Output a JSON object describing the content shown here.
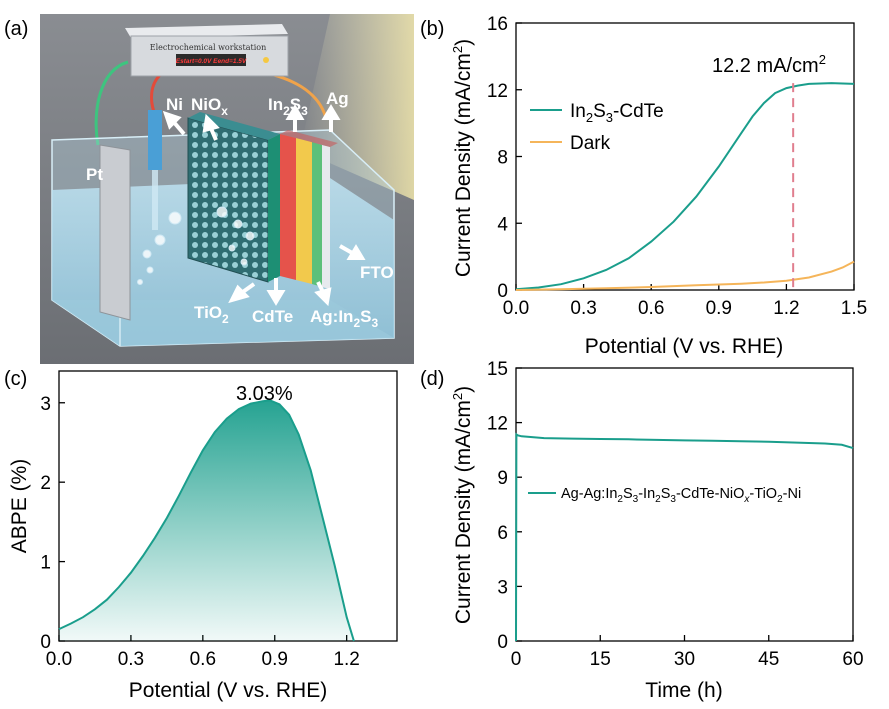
{
  "colors": {
    "teal": "#1a9e8c",
    "orange": "#f5b55a",
    "pink_dash": "#e07e8e",
    "axis": "#000000"
  },
  "schematic": {
    "panel_label": "(a)",
    "device_title": "Electrochemical workstation",
    "device_screen": "Estart=0.0V  Eend=1.5V",
    "labels": {
      "pt": "Pt",
      "ni": "Ni",
      "niox": {
        "base": "NiO",
        "sub": "x"
      },
      "in2s3": {
        "base": "In",
        "sub1": "2",
        "mid": "S",
        "sub2": "3"
      },
      "ag": "Ag",
      "fto": "FTO",
      "tio2": {
        "base": "TiO",
        "sub": "2"
      },
      "cdte": "CdTe",
      "ag_in2s3": {
        "base": "Ag:In",
        "sub1": "2",
        "mid": "S",
        "sub2": "3"
      }
    }
  },
  "chart_data": [
    {
      "id": "b",
      "panel_label": "(b)",
      "type": "line",
      "xlabel": "Potential (V vs. RHE)",
      "ylabel": {
        "base": "Current Density (mA/cm",
        "sup": "2",
        "end": ")"
      },
      "xlim": [
        0,
        1.5
      ],
      "ylim": [
        0,
        16
      ],
      "xticks": [
        "0.0",
        "0.3",
        "0.6",
        "0.9",
        "1.2",
        "1.5"
      ],
      "yticks": [
        "0",
        "4",
        "8",
        "12",
        "16"
      ],
      "legend_position": "center-left",
      "series": [
        {
          "name_base": "In",
          "name_sub1": "2",
          "name_mid": "S",
          "name_sub2": "3",
          "name_end": "-CdTe",
          "color": "#1a9e8c",
          "x": [
            0,
            0.1,
            0.2,
            0.3,
            0.4,
            0.5,
            0.6,
            0.7,
            0.8,
            0.9,
            1.0,
            1.05,
            1.1,
            1.15,
            1.2,
            1.25,
            1.3,
            1.4,
            1.5
          ],
          "y": [
            0.05,
            0.15,
            0.35,
            0.7,
            1.2,
            1.9,
            2.9,
            4.1,
            5.6,
            7.4,
            9.4,
            10.4,
            11.2,
            11.8,
            12.1,
            12.25,
            12.35,
            12.4,
            12.35
          ]
        },
        {
          "name": "Dark",
          "color": "#f5b55a",
          "x": [
            0,
            0.2,
            0.4,
            0.6,
            0.8,
            1.0,
            1.1,
            1.2,
            1.3,
            1.4,
            1.45,
            1.5
          ],
          "y": [
            0.0,
            0.05,
            0.1,
            0.18,
            0.28,
            0.38,
            0.45,
            0.55,
            0.75,
            1.1,
            1.35,
            1.7
          ]
        }
      ],
      "annotation": {
        "text_base": "12.2 mA/cm",
        "text_sup": "2",
        "x": 1.23
      }
    },
    {
      "id": "c",
      "panel_label": "(c)",
      "type": "area",
      "xlabel": "Potential (V vs. RHE)",
      "ylabel": "ABPE (%)",
      "xlim": [
        0,
        1.41
      ],
      "ylim": [
        0,
        3.4
      ],
      "xticks": [
        "0.0",
        "0.3",
        "0.6",
        "0.9",
        "1.2"
      ],
      "yticks": [
        "0",
        "1",
        "2",
        "3"
      ],
      "series": [
        {
          "color": "#1a9e8c",
          "x": [
            0,
            0.05,
            0.1,
            0.15,
            0.2,
            0.25,
            0.3,
            0.35,
            0.4,
            0.45,
            0.5,
            0.55,
            0.6,
            0.65,
            0.7,
            0.75,
            0.8,
            0.85,
            0.88,
            0.92,
            0.96,
            1.0,
            1.05,
            1.1,
            1.15,
            1.2,
            1.23
          ],
          "y": [
            0.15,
            0.22,
            0.3,
            0.4,
            0.52,
            0.68,
            0.86,
            1.07,
            1.3,
            1.55,
            1.83,
            2.12,
            2.4,
            2.63,
            2.8,
            2.92,
            2.99,
            3.02,
            3.03,
            2.98,
            2.85,
            2.6,
            2.15,
            1.55,
            0.95,
            0.3,
            0.0
          ]
        }
      ],
      "annotation": {
        "text": "3.03%"
      }
    },
    {
      "id": "d",
      "panel_label": "(d)",
      "type": "line",
      "xlabel": "Time (h)",
      "ylabel": {
        "base": "Current Density (mA/cm",
        "sup": "2",
        "end": ")"
      },
      "xlim": [
        0,
        60
      ],
      "ylim": [
        0,
        15
      ],
      "xticks": [
        "0",
        "15",
        "30",
        "45",
        "60"
      ],
      "yticks": [
        "0",
        "3",
        "6",
        "9",
        "12",
        "15"
      ],
      "legend_position": "center-right",
      "legend": {
        "segments": [
          {
            "t": "Ag-Ag:In"
          },
          {
            "t": "2",
            "sub": true
          },
          {
            "t": "S"
          },
          {
            "t": "3",
            "sub": true
          },
          {
            "t": "-In"
          },
          {
            "t": "2",
            "sub": true
          },
          {
            "t": "S"
          },
          {
            "t": "3",
            "sub": true
          },
          {
            "t": "-CdTe-NiO"
          },
          {
            "t": "x",
            "sub": true,
            "italic": true
          },
          {
            "t": "-TiO"
          },
          {
            "t": "2",
            "sub": true
          },
          {
            "t": "-Ni"
          }
        ]
      },
      "series": [
        {
          "color": "#1a9e8c",
          "x": [
            0,
            0.08,
            0.3,
            1,
            5,
            10,
            15,
            20,
            25,
            30,
            35,
            40,
            45,
            50,
            55,
            58,
            60
          ],
          "y": [
            0,
            11.35,
            11.3,
            11.25,
            11.15,
            11.12,
            11.1,
            11.08,
            11.05,
            11.02,
            11.0,
            10.98,
            10.95,
            10.9,
            10.85,
            10.78,
            10.6
          ]
        }
      ]
    }
  ]
}
